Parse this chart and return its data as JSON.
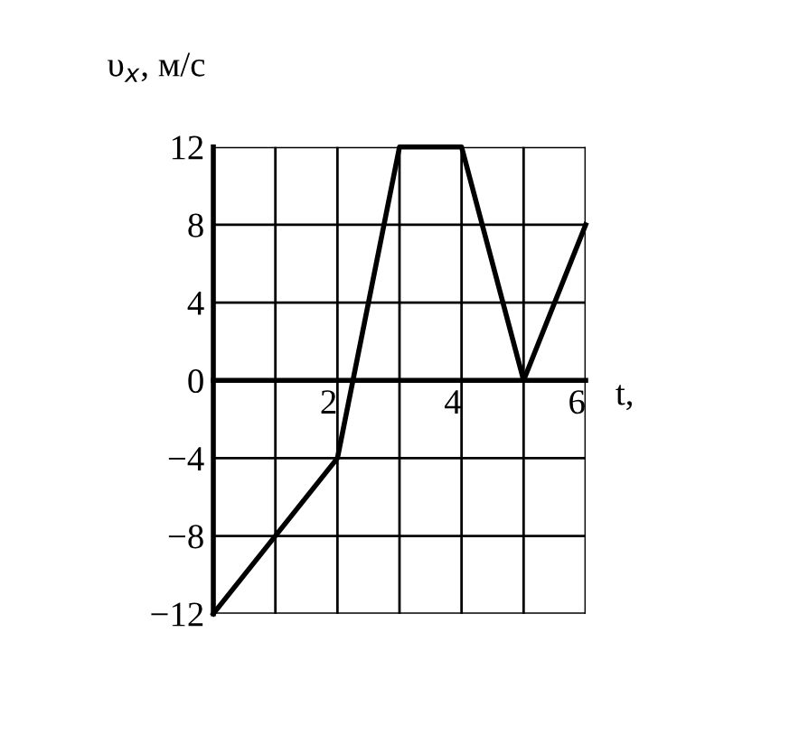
{
  "chart_data": {
    "type": "line",
    "xlabel": "t,",
    "ylabel": "υ$_{x}$, м/с",
    "x": [
      0,
      2,
      3,
      4,
      5,
      6
    ],
    "series": [
      {
        "color": "#000000",
        "values": [
          -12,
          -4,
          12,
          12,
          0,
          8
        ]
      }
    ],
    "xlim": [
      0,
      6
    ],
    "ylim": [
      -12,
      12
    ],
    "xticks": [
      {
        "value": 1,
        "label": null
      },
      2,
      {
        "value": 3,
        "label": null
      },
      4,
      {
        "value": 5,
        "label": null
      },
      6
    ],
    "yticks": [
      -12,
      -8,
      -4,
      0,
      4,
      8,
      12
    ],
    "grid": true,
    "marker": "none",
    "line_style": "solid"
  }
}
